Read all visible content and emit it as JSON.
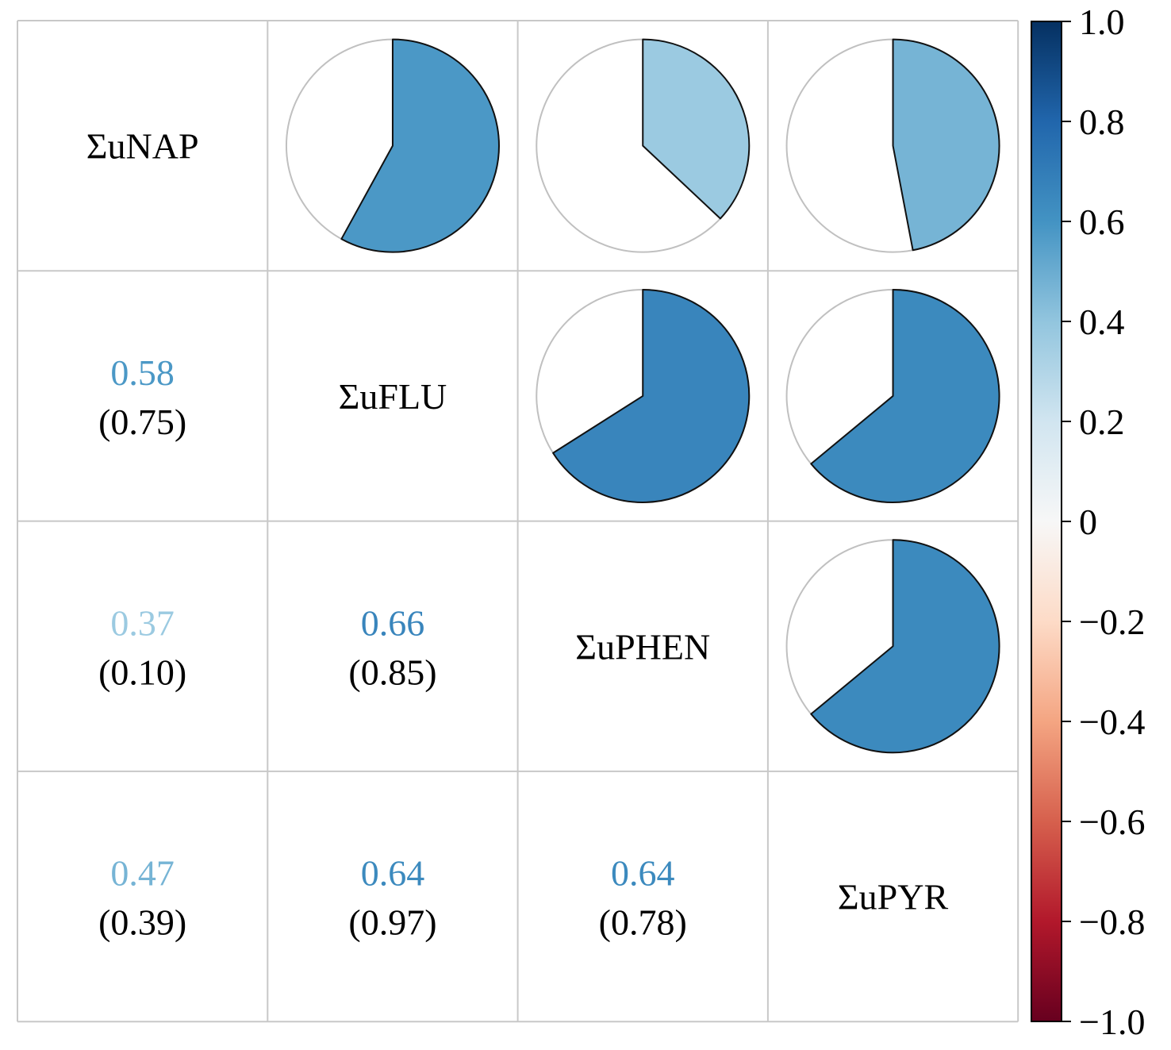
{
  "chart_data": {
    "type": "heatmap",
    "subtype": "correlogram",
    "variables": [
      "ΣuNAP",
      "ΣuFLU",
      "ΣuPHEN",
      "ΣuPYR"
    ],
    "upper_display": "pie",
    "lower_display": "number",
    "lower_cells": [
      {
        "row": 1,
        "col": 0,
        "r": "0.58",
        "p": "(0.75)"
      },
      {
        "row": 2,
        "col": 0,
        "r": "0.37",
        "p": "(0.10)"
      },
      {
        "row": 2,
        "col": 1,
        "r": "0.66",
        "p": "(0.85)"
      },
      {
        "row": 3,
        "col": 0,
        "r": "0.47",
        "p": "(0.39)"
      },
      {
        "row": 3,
        "col": 1,
        "r": "0.64",
        "p": "(0.97)"
      },
      {
        "row": 3,
        "col": 2,
        "r": "0.64",
        "p": "(0.78)"
      }
    ],
    "colorbar": {
      "range": [
        -1.0,
        1.0
      ],
      "ticks": [
        "1.0",
        "0.8",
        "0.6",
        "0.4",
        "0.2",
        "0",
        "−0.2",
        "−0.4",
        "−0.6",
        "−0.8",
        "−1.0"
      ],
      "colormap": "RdBu",
      "color_stops": [
        "#67001f",
        "#b2182b",
        "#d6604d",
        "#f4a582",
        "#fddbc7",
        "#f7f7f7",
        "#d1e5f0",
        "#92c5de",
        "#4393c3",
        "#2166ac",
        "#053061"
      ]
    },
    "grid": true
  }
}
